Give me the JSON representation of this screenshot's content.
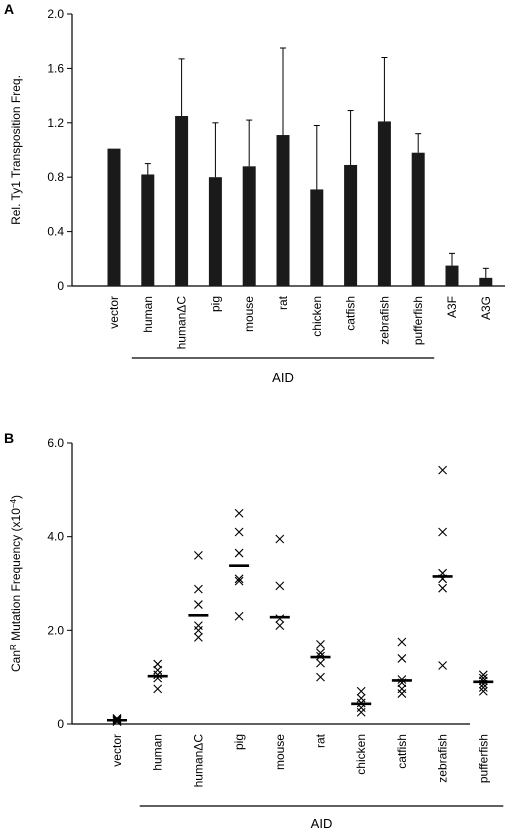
{
  "chart_data": [
    {
      "panel_label": "A",
      "type": "bar",
      "ylabel": "Rel. Ty1 Transposition Freq.",
      "ylim": [
        0,
        2.0
      ],
      "yticks": [
        "0",
        "0.4",
        "0.8",
        "1.2",
        "1.6",
        "2.0"
      ],
      "categories": [
        "vector",
        "human",
        "humanΔC",
        "pig",
        "mouse",
        "rat",
        "chicken",
        "catfish",
        "zebrafish",
        "pufferfish",
        "A3F",
        "A3G"
      ],
      "values": [
        1.01,
        0.82,
        1.25,
        0.8,
        0.88,
        1.11,
        0.71,
        0.89,
        1.21,
        0.98,
        0.15,
        0.06
      ],
      "errors": [
        0.0,
        0.08,
        0.42,
        0.4,
        0.34,
        0.64,
        0.47,
        0.4,
        0.47,
        0.14,
        0.09,
        0.07
      ],
      "group_label": "AID",
      "group_members": [
        "human",
        "pufferfish"
      ],
      "bar_color": "#1a1a1a"
    },
    {
      "panel_label": "B",
      "type": "scatter",
      "ylabel_main": "Can",
      "ylabel_sup": "R",
      "ylabel_rest": " Mutation Frequency (x10",
      "ylabel_exp": "−4",
      "ylabel_end": ")",
      "ylim": [
        0,
        6.0
      ],
      "yticks": [
        "0",
        "2.0",
        "4.0",
        "6.0"
      ],
      "categories": [
        "vector",
        "human",
        "humanΔC",
        "pig",
        "mouse",
        "rat",
        "chicken",
        "catfish",
        "zebrafish",
        "pufferfish"
      ],
      "points": [
        [
          0.05,
          0.08,
          0.1,
          0.12,
          0.07
        ],
        [
          0.75,
          0.98,
          1.05,
          1.15,
          1.28
        ],
        [
          1.85,
          2.0,
          2.1,
          2.55,
          2.88,
          3.6
        ],
        [
          2.3,
          3.05,
          3.1,
          3.65,
          4.1,
          4.5
        ],
        [
          2.1,
          2.25,
          2.95,
          3.95
        ],
        [
          1.0,
          1.3,
          1.45,
          1.52,
          1.7
        ],
        [
          0.25,
          0.35,
          0.45,
          0.55,
          0.7
        ],
        [
          0.65,
          0.75,
          0.88,
          0.95,
          1.4,
          1.75
        ],
        [
          1.25,
          2.9,
          3.1,
          3.22,
          4.1,
          5.42
        ],
        [
          0.7,
          0.78,
          0.85,
          0.92,
          0.98,
          1.05
        ]
      ],
      "means": [
        0.08,
        1.02,
        2.32,
        3.38,
        2.28,
        1.43,
        0.43,
        0.93,
        3.15,
        0.9
      ],
      "group_label": "AID",
      "group_members": [
        "human",
        "pufferfish"
      ]
    }
  ]
}
